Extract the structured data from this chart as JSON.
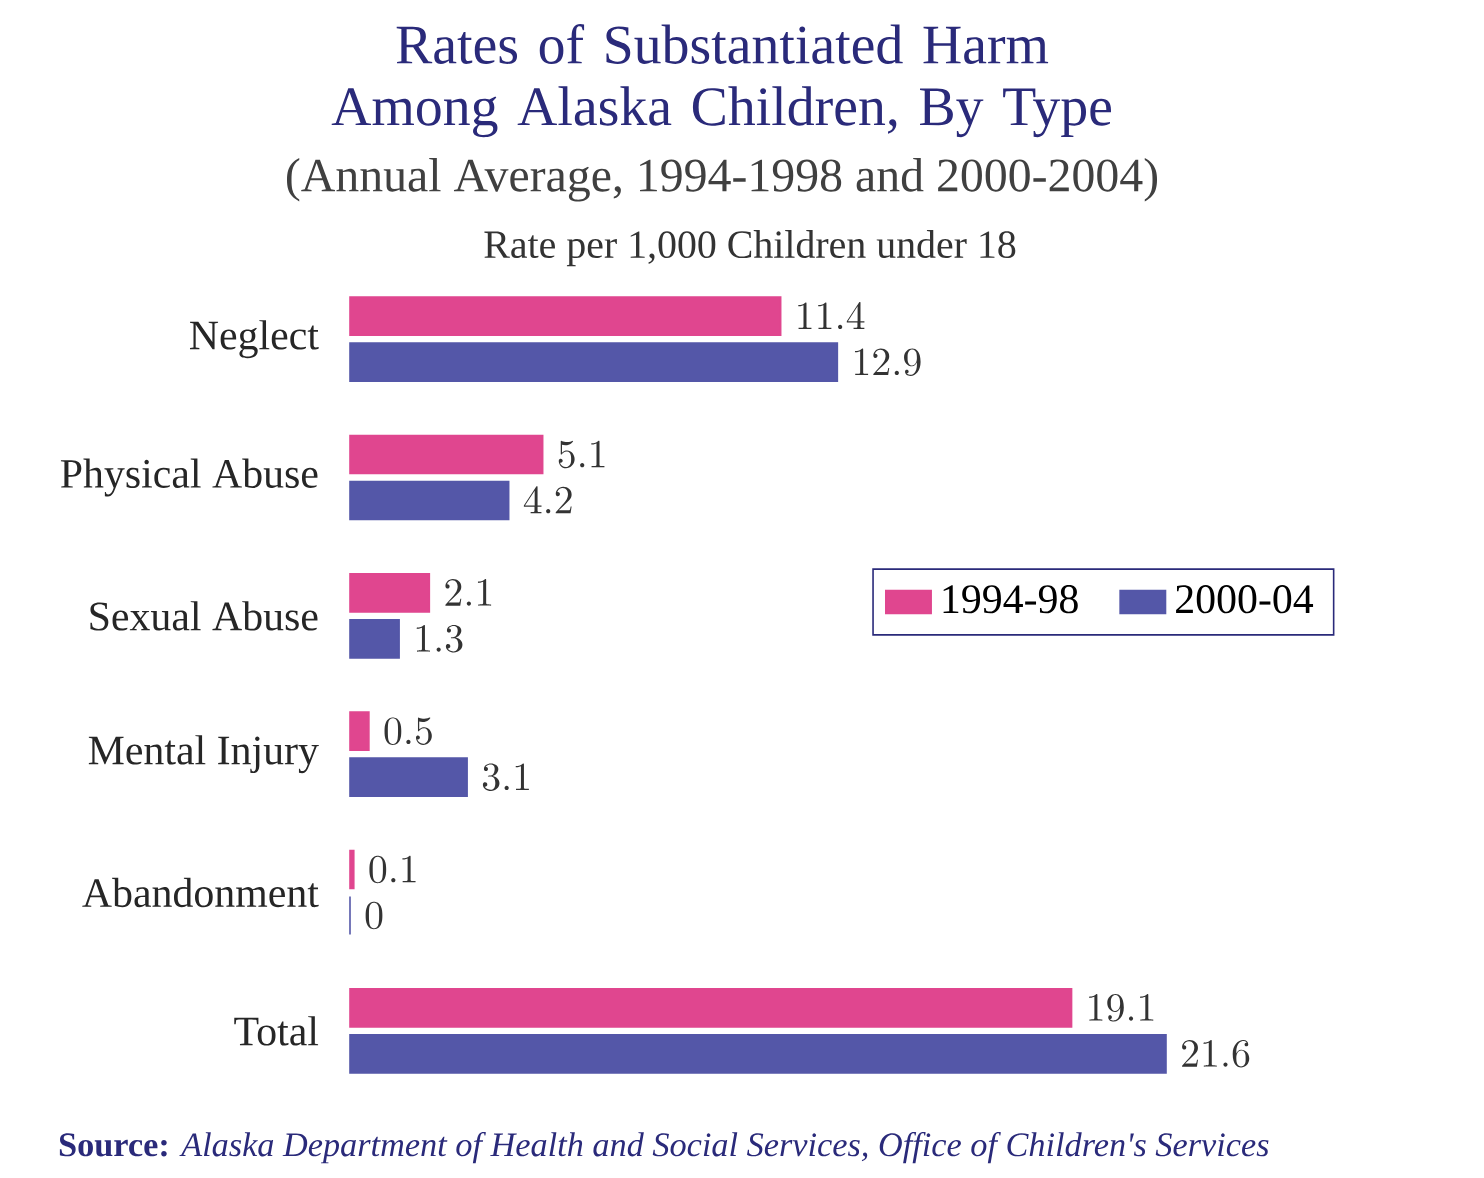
{
  "chart_data": {
    "type": "bar",
    "orientation": "horizontal",
    "title": "Rates of Substantiated Harm Among Alaska Children, By Type",
    "subtitle": "(Annual Average, 1994-1998 and 2000-2004)",
    "xlabel": "Rate per 1,000 Children under 18",
    "categories": [
      "Neglect",
      "Physical Abuse",
      "Sexual Abuse",
      "Mental Injury",
      "Abandonment",
      "Total"
    ],
    "series": [
      {
        "name": "1994-98",
        "color": "#e0468f",
        "values": [
          11.4,
          5.1,
          2.1,
          0.5,
          0.1,
          19.1
        ]
      },
      {
        "name": "2000-04",
        "color": "#5457a8",
        "values": [
          12.9,
          4.2,
          1.3,
          3.1,
          0,
          21.6
        ]
      }
    ],
    "data_labels": true,
    "legend": "right",
    "annotations": [
      "**Source:** *Alaska Department of Health and Social Services, Office of Children's Services*"
    ]
  }
}
